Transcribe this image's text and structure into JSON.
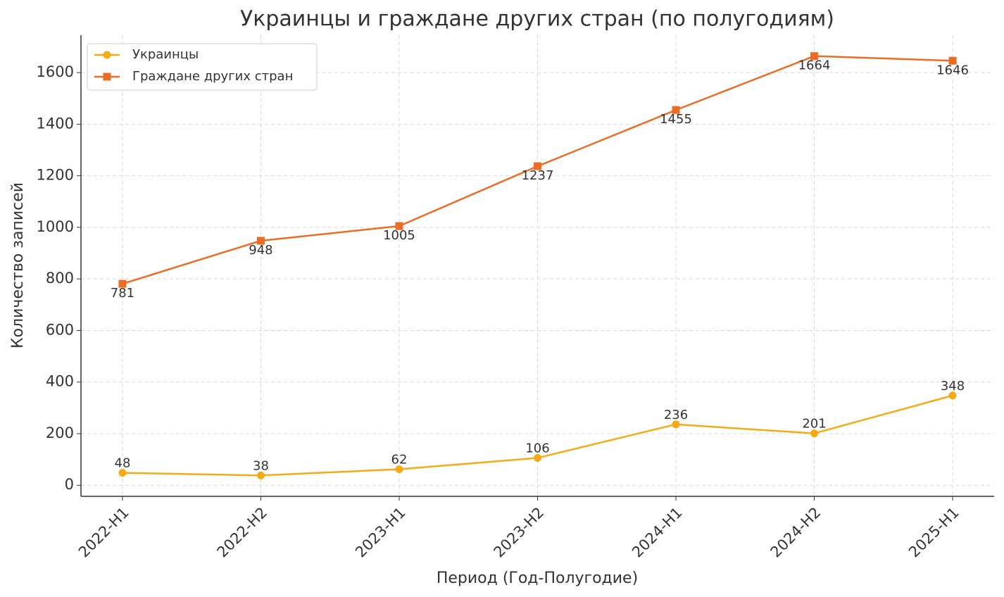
{
  "chart_data": {
    "type": "line",
    "title": "Украинцы и граждане других стран (по полугодиям)",
    "x_label": "Период (Год-Полугодие)",
    "y_label": "Количество записей",
    "categories": [
      "2022-H1",
      "2022-H2",
      "2023-H1",
      "2023-H2",
      "2024-H1",
      "2024-H2",
      "2025-H1"
    ],
    "series": [
      {
        "name": "Украинцы",
        "color": "#f5ab16",
        "marker": "circle",
        "label_position": "above",
        "values": [
          48,
          38,
          62,
          106,
          236,
          201,
          348
        ]
      },
      {
        "name": "Граждане других стран",
        "color": "#ec6c24",
        "marker": "square",
        "label_position": "below",
        "values": [
          781,
          948,
          1005,
          1237,
          1455,
          1664,
          1646
        ]
      }
    ],
    "ylim": [
      -43,
      1745
    ],
    "yticks": [
      0,
      200,
      400,
      600,
      800,
      1000,
      1200,
      1400,
      1600
    ],
    "grid": true,
    "legend": "upper-left"
  }
}
